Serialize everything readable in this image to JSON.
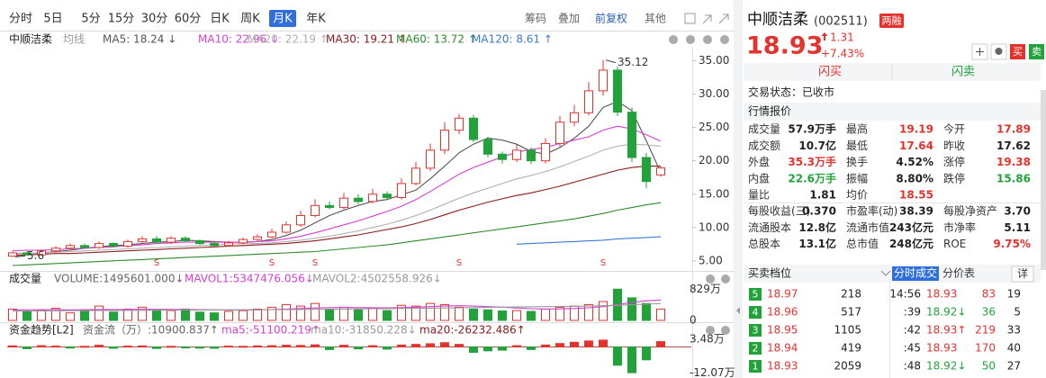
{
  "toolbar": {
    "periods": [
      "分时",
      "5日",
      "5分",
      "15分",
      "30分",
      "60分",
      "日K",
      "周K",
      "月K",
      "年K"
    ],
    "active": 8,
    "tools": [
      "筹码",
      "叠加",
      "前复权",
      "其他"
    ]
  },
  "chart_data": [
    {
      "type": "candlestick",
      "title": "中顺洁柔",
      "indicator": "均线",
      "open": [
        5.7,
        6.2,
        5.9,
        6.5,
        6.9,
        7.3,
        7.0,
        7.6,
        7.2,
        7.9,
        8.3,
        7.8,
        8.4,
        8.0,
        7.6,
        7.3,
        7.7,
        8.2,
        8.6,
        9.3,
        10.4,
        11.8,
        13.3,
        13.0,
        14.4,
        13.9,
        15.0,
        14.5,
        16.6,
        18.9,
        21.6,
        24.6,
        26.4,
        23.2,
        21.0,
        20.2,
        21.6,
        20.0,
        22.6,
        25.8,
        27.2,
        30.5,
        33.6,
        27.3,
        20.5,
        17.89
      ],
      "high": [
        6.4,
        6.5,
        6.7,
        7.2,
        7.6,
        7.6,
        7.9,
        7.8,
        8.2,
        8.7,
        8.7,
        8.7,
        8.7,
        8.2,
        7.9,
        8.0,
        8.5,
        9.0,
        9.8,
        10.9,
        12.5,
        14.2,
        13.9,
        15.2,
        15.0,
        15.8,
        15.4,
        17.4,
        19.8,
        22.6,
        25.8,
        27.0,
        26.9,
        23.6,
        21.4,
        22.4,
        22.0,
        23.4,
        26.7,
        28.4,
        31.8,
        35.12,
        34.2,
        28.0,
        21.2,
        19.19
      ],
      "low": [
        5.6,
        5.87,
        5.7,
        6.3,
        6.7,
        6.8,
        6.8,
        7.0,
        7.0,
        7.6,
        7.6,
        7.5,
        7.8,
        7.4,
        7.1,
        7.1,
        7.5,
        8.0,
        8.4,
        9.1,
        10.1,
        11.5,
        12.7,
        12.7,
        13.5,
        13.6,
        14.1,
        14.2,
        16.3,
        18.5,
        21.0,
        24.0,
        22.8,
        20.5,
        19.6,
        19.8,
        19.5,
        19.6,
        22.1,
        25.2,
        26.8,
        29.8,
        26.7,
        19.8,
        15.9,
        17.64
      ],
      "close": [
        6.2,
        5.9,
        6.5,
        6.9,
        7.3,
        7.0,
        7.6,
        7.2,
        7.9,
        8.3,
        7.8,
        8.4,
        8.0,
        7.6,
        7.3,
        7.7,
        8.2,
        8.6,
        9.3,
        10.4,
        11.8,
        13.3,
        13.0,
        14.4,
        13.9,
        15.0,
        14.5,
        16.6,
        18.9,
        21.6,
        24.6,
        26.4,
        23.2,
        21.0,
        20.2,
        21.6,
        20.0,
        22.6,
        25.8,
        27.2,
        30.5,
        33.6,
        27.3,
        20.5,
        16.9,
        18.93
      ],
      "up_color": "#e4322c",
      "down_color": "#21a33a",
      "markers": [
        null,
        null,
        null,
        null,
        null,
        null,
        null,
        null,
        null,
        null,
        "S",
        null,
        null,
        null,
        null,
        null,
        null,
        null,
        "S",
        null,
        null,
        "S",
        null,
        null,
        null,
        null,
        null,
        null,
        null,
        null,
        null,
        "S",
        null,
        null,
        null,
        null,
        null,
        null,
        null,
        null,
        null,
        "S",
        null,
        null,
        null,
        null
      ],
      "ylim": [
        3.9,
        37.1
      ],
      "yticks": [
        {
          "value": 35,
          "label": "35.00"
        },
        {
          "value": 30,
          "label": "30.00"
        },
        {
          "value": 25,
          "label": "25.00"
        },
        {
          "value": 20,
          "label": "20.00"
        },
        {
          "value": 15,
          "label": "15.00"
        },
        {
          "value": 10,
          "label": "10.00"
        },
        {
          "value": 5,
          "label": "5.00"
        }
      ],
      "series": [
        {
          "name": "MA5: 18.24 ↓",
          "color": "#555555",
          "values": [
            6.1,
            6.1,
            6.2,
            6.4,
            6.6,
            6.9,
            7.1,
            7.3,
            7.4,
            7.6,
            7.8,
            7.9,
            8.1,
            8.0,
            7.9,
            7.8,
            7.8,
            7.9,
            8.2,
            8.8,
            9.6,
            10.7,
            11.8,
            12.6,
            13.3,
            13.9,
            14.2,
            14.9,
            15.6,
            17.3,
            19.2,
            21.2,
            22.5,
            23.4,
            23.1,
            22.5,
            21.4,
            21.0,
            22.0,
            23.4,
            25.2,
            28.0,
            28.9,
            27.5,
            23.0,
            18.24
          ]
        },
        {
          "name": "MA10: 22.96 ↓",
          "color": "#d63fd0",
          "values": [
            6.5,
            6.6,
            6.6,
            6.7,
            6.8,
            6.9,
            7.0,
            7.1,
            7.3,
            7.4,
            7.6,
            7.7,
            7.8,
            7.8,
            7.8,
            7.8,
            7.8,
            7.9,
            8.0,
            8.3,
            8.7,
            9.2,
            9.8,
            10.4,
            11.0,
            11.7,
            12.4,
            13.2,
            14.2,
            15.4,
            16.7,
            18.0,
            19.0,
            19.8,
            20.6,
            21.3,
            21.7,
            22.0,
            22.6,
            23.1,
            23.6,
            24.6,
            25.2,
            24.8,
            23.9,
            22.96
          ]
        },
        {
          "name": "MA20: 22.19 ↑",
          "color": "#b0b0b0",
          "values": [
            6.0,
            6.1,
            6.2,
            6.3,
            6.4,
            6.5,
            6.6,
            6.7,
            6.8,
            6.9,
            7.0,
            7.1,
            7.2,
            7.3,
            7.4,
            7.5,
            7.6,
            7.6,
            7.7,
            7.9,
            8.1,
            8.4,
            8.7,
            9.1,
            9.5,
            10.0,
            10.5,
            11.1,
            11.8,
            12.6,
            13.5,
            14.4,
            15.2,
            15.9,
            16.6,
            17.3,
            17.8,
            18.4,
            19.1,
            19.9,
            20.7,
            21.6,
            22.2,
            22.5,
            22.4,
            22.19
          ]
        },
        {
          "name": "MA30: 19.21 ↑",
          "color": "#8b1a1a",
          "values": [
            5.8,
            5.9,
            6.0,
            6.1,
            6.1,
            6.2,
            6.3,
            6.4,
            6.5,
            6.6,
            6.7,
            6.8,
            6.9,
            7.0,
            7.1,
            7.2,
            7.3,
            7.4,
            7.5,
            7.6,
            7.8,
            8.0,
            8.3,
            8.6,
            8.9,
            9.3,
            9.7,
            10.1,
            10.6,
            11.2,
            11.9,
            12.6,
            13.2,
            13.8,
            14.3,
            14.8,
            15.2,
            15.7,
            16.2,
            16.8,
            17.4,
            18.0,
            18.6,
            19.0,
            19.2,
            19.21
          ]
        },
        {
          "name": "MA60: 13.72 ↑",
          "color": "#2e8b2e",
          "values": [
            4.3,
            4.4,
            4.5,
            4.6,
            4.7,
            4.8,
            4.9,
            5.0,
            5.1,
            5.2,
            5.3,
            5.4,
            5.5,
            5.6,
            5.7,
            5.8,
            5.9,
            6.0,
            6.1,
            6.2,
            6.3,
            6.4,
            6.6,
            6.8,
            7.0,
            7.2,
            7.4,
            7.7,
            8.0,
            8.3,
            8.6,
            8.9,
            9.2,
            9.5,
            9.8,
            10.1,
            10.4,
            10.7,
            11.0,
            11.3,
            11.7,
            12.1,
            12.6,
            13.0,
            13.4,
            13.72
          ]
        },
        {
          "name": "MA120: 8.61 ↑",
          "color": "#3a7bd5",
          "values": [
            null,
            null,
            null,
            null,
            null,
            null,
            null,
            null,
            null,
            null,
            null,
            null,
            null,
            null,
            null,
            null,
            null,
            null,
            null,
            null,
            null,
            null,
            null,
            null,
            null,
            null,
            null,
            null,
            null,
            null,
            null,
            null,
            null,
            null,
            null,
            7.5,
            7.6,
            7.7,
            7.8,
            7.9,
            8.0,
            8.1,
            8.3,
            8.4,
            8.5,
            8.61
          ]
        }
      ]
    },
    {
      "type": "bar",
      "title": "成交量",
      "ylim": [
        0,
        860
      ],
      "yticks": [
        {
          "value": 829,
          "label": "829万"
        },
        0
      ],
      "series": [
        {
          "name": "VOLUME:1495601.000↓",
          "color": "#666666",
          "values": [
            300,
            250,
            280,
            320,
            200,
            260,
            380,
            220,
            300,
            350,
            280,
            260,
            300,
            220,
            200,
            240,
            260,
            300,
            350,
            420,
            380,
            450,
            300,
            350,
            280,
            320,
            260,
            400,
            380,
            450,
            420,
            350,
            300,
            280,
            250,
            260,
            240,
            300,
            350,
            380,
            420,
            500,
            829,
            600,
            450,
            300
          ]
        },
        {
          "name": "MAVOL1:5347476.056↓",
          "color": "#d63fd0",
          "values": [
            280,
            280,
            282,
            284,
            280,
            285,
            290,
            288,
            292,
            296,
            294,
            292,
            290,
            285,
            280,
            278,
            276,
            280,
            290,
            300,
            315,
            330,
            340,
            345,
            340,
            338,
            335,
            340,
            350,
            365,
            380,
            390,
            380,
            365,
            350,
            330,
            310,
            300,
            305,
            315,
            335,
            365,
            420,
            480,
            520,
            540
          ]
        },
        {
          "name": "MAVOL2:4502558.926↓",
          "color": "#999999",
          "values": [
            250,
            252,
            254,
            256,
            258,
            260,
            262,
            264,
            266,
            268,
            270,
            272,
            274,
            276,
            278,
            280,
            282,
            284,
            286,
            288,
            290,
            294,
            298,
            302,
            306,
            310,
            314,
            318,
            322,
            326,
            330,
            335,
            340,
            345,
            350,
            355,
            360,
            365,
            370,
            375,
            380,
            390,
            400,
            415,
            430,
            450
          ]
        }
      ]
    },
    {
      "type": "bar",
      "title": "资金趋势[L2]",
      "ylim": [
        -12.8,
        4
      ],
      "yticks": [
        {
          "value": 3.48,
          "label": "3.48万"
        },
        {
          "value": -12.07,
          "label": "-12.07万"
        }
      ],
      "series": [
        {
          "name": "资金流（万）:10900.837↑",
          "color": "#666666",
          "values": [
            0.5,
            -0.8,
            0.6,
            0.4,
            -0.5,
            0.3,
            0.8,
            -0.6,
            0.4,
            0.5,
            -0.7,
            0.3,
            -0.4,
            -0.5,
            -0.6,
            0.4,
            0.3,
            0.5,
            0.6,
            0.8,
            0.7,
            1.0,
            -1.2,
            0.8,
            -0.9,
            0.6,
            -1.0,
            0.9,
            1.2,
            1.5,
            2.0,
            1.2,
            -2.5,
            -1.8,
            -1.5,
            0.6,
            -1.2,
            0.9,
            1.6,
            2.2,
            2.8,
            3.2,
            -8.5,
            -12.0,
            -6.0,
            2.5
          ]
        },
        {
          "name": "ma5:-51100.219↑",
          "color": "#d63fd0"
        },
        {
          "name": "ma10:-31850.228↓",
          "color": "#999999"
        },
        {
          "name": "ma20:-26232.486↑",
          "color": "#8b1a1a"
        }
      ]
    }
  ],
  "quote": {
    "name": "中顺洁柔",
    "code": "(002511)",
    "badge": "两融",
    "price": 18.93,
    "change": 1.31,
    "change_pct": "+7.43%",
    "buy": "闪买",
    "sell": "闪卖",
    "status": "交易状态：已收市",
    "section": "行情报价",
    "rows": [
      [
        {
          "label": "成交量",
          "value": "57.9万手",
          "color": "#222"
        },
        {
          "label": "最高",
          "value": 19.19,
          "color": "#e4322c"
        },
        {
          "label": "今开",
          "value": 17.89,
          "color": "#e4322c"
        }
      ],
      [
        {
          "label": "成交额",
          "value": "10.7亿",
          "color": "#222"
        },
        {
          "label": "最低",
          "value": 17.64,
          "color": "#e4322c"
        },
        {
          "label": "昨收",
          "value": 17.62,
          "color": "#222"
        }
      ],
      [
        {
          "label": "外盘",
          "value": "35.3万手",
          "color": "#e4322c"
        },
        {
          "label": "换手",
          "value": "4.52%",
          "color": "#222"
        },
        {
          "label": "涨停",
          "value": 19.38,
          "color": "#e4322c"
        }
      ],
      [
        {
          "label": "内盘",
          "value": "22.6万手",
          "color": "#21a33a"
        },
        {
          "label": "振幅",
          "value": "8.80%",
          "color": "#222"
        },
        {
          "label": "跌停",
          "value": 15.86,
          "color": "#21a33a"
        }
      ],
      [
        {
          "label": "量比",
          "value": 1.81,
          "color": "#222"
        },
        {
          "label": "均价",
          "value": 18.55,
          "color": "#e4322c"
        }
      ]
    ],
    "finance": [
      [
        {
          "label": "每股收益(三)",
          "value": "0.370",
          "color": "#222"
        },
        {
          "label": "市盈率(动)",
          "value": 38.39,
          "color": "#222"
        },
        {
          "label": "每股净资产",
          "value": "3.70",
          "color": "#222"
        }
      ],
      [
        {
          "label": "流通股本",
          "value": "12.8亿",
          "color": "#222"
        },
        {
          "label": "流通市值",
          "value": "243亿元",
          "color": "#222"
        },
        {
          "label": "市净率",
          "value": 5.11,
          "color": "#222"
        }
      ],
      [
        {
          "label": "总股本",
          "value": "13.1亿",
          "color": "#222"
        },
        {
          "label": "总市值",
          "value": "248亿元",
          "color": "#222"
        },
        {
          "label": "ROE",
          "value": "9.75%",
          "color": "#e4322c"
        }
      ]
    ]
  },
  "book": {
    "title": "买卖档位",
    "tabs": [
      "分时成交",
      "分价表"
    ],
    "detail": "详",
    "levels": [
      {
        "level": 5,
        "price": 18.97,
        "volume": 218
      },
      {
        "level": 4,
        "price": 18.96,
        "volume": 517
      },
      {
        "level": 3,
        "price": 18.95,
        "volume": 1105
      },
      {
        "level": 2,
        "price": 18.94,
        "volume": 419
      },
      {
        "level": 1,
        "price": 18.93,
        "volume": 2059
      }
    ],
    "trades": [
      {
        "time": "14:56",
        "price": 18.93,
        "volume": 83,
        "count": 19,
        "color": "#e4322c"
      },
      {
        "time": ":39",
        "price": "18.92↓",
        "volume": 36,
        "count": 5,
        "color": "#21a33a"
      },
      {
        "time": ":42",
        "price": "18.93↑",
        "volume": 219,
        "count": 33,
        "color": "#e4322c"
      },
      {
        "time": ":45",
        "price": 18.93,
        "volume": 170,
        "count": 40,
        "color": "#e4322c"
      },
      {
        "time": ":48",
        "price": "18.92↓",
        "volume": 50,
        "count": 27,
        "color": "#21a33a"
      }
    ]
  }
}
